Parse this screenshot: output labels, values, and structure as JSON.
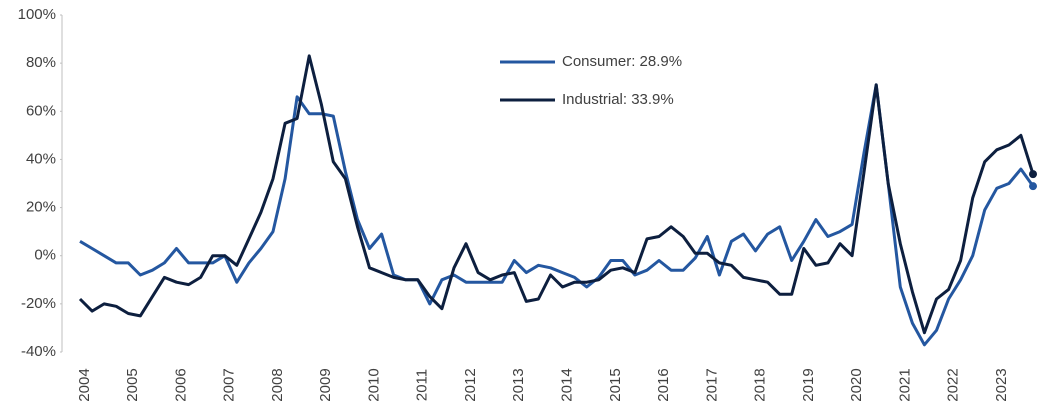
{
  "chart_data": {
    "type": "line",
    "categories": [
      "2004",
      null,
      null,
      null,
      "2005",
      null,
      null,
      null,
      "2006",
      null,
      null,
      null,
      "2007",
      null,
      null,
      null,
      "2008",
      null,
      null,
      null,
      "2009",
      null,
      null,
      null,
      "2010",
      null,
      null,
      null,
      "2011",
      null,
      null,
      null,
      "2012",
      null,
      null,
      null,
      "2013",
      null,
      null,
      null,
      "2014",
      null,
      null,
      null,
      "2015",
      null,
      null,
      null,
      "2016",
      null,
      null,
      null,
      "2017",
      null,
      null,
      null,
      "2018",
      null,
      null,
      null,
      "2019",
      null,
      null,
      null,
      "2020",
      null,
      null,
      null,
      "2021",
      null,
      null,
      null,
      "2022",
      null,
      null,
      null,
      "2023",
      null,
      null,
      null
    ],
    "series": [
      {
        "name": "Consumer: 28.9%",
        "color": "#2457a0",
        "values": [
          6,
          3,
          0,
          -3,
          -3,
          -8,
          -6,
          -3,
          3,
          -3,
          -3,
          -3,
          0,
          -11,
          -3,
          3,
          10,
          32,
          66,
          59,
          59,
          58,
          35,
          15,
          3,
          9,
          -8,
          -10,
          -10,
          -20,
          -10,
          -8,
          -11,
          -11,
          -11,
          -11,
          -2,
          -7,
          -4,
          -5,
          -7,
          -9,
          -13,
          -9,
          -2,
          -2,
          -8,
          -6,
          -2,
          -6,
          -6,
          -1,
          8,
          -8,
          6,
          9,
          2,
          9,
          12,
          -2,
          6,
          15,
          8,
          10,
          13,
          43,
          71,
          30,
          -13,
          -28,
          -37,
          -31,
          -18,
          -10,
          0,
          19,
          28,
          30,
          36,
          28.9
        ]
      },
      {
        "name": "Industrial: 33.9%",
        "color": "#0d1f3f",
        "values": [
          -18,
          -23,
          -20,
          -21,
          -24,
          -25,
          -17,
          -9,
          -11,
          -12,
          -9,
          0,
          0,
          -4,
          7,
          18,
          32,
          55,
          57,
          83,
          63,
          39,
          32,
          12,
          -5,
          -7,
          -9,
          -10,
          -10,
          -17,
          -22,
          -5,
          5,
          -7,
          -10,
          -8,
          -7,
          -19,
          -18,
          -8,
          -13,
          -11,
          -11,
          -10,
          -6,
          -5,
          -7,
          7,
          8,
          12,
          8,
          1,
          1,
          -3,
          -4,
          -9,
          -10,
          -11,
          -16,
          -16,
          3,
          -4,
          -3,
          5,
          0,
          35,
          71,
          30,
          5,
          -15,
          -32,
          -18,
          -14,
          -2,
          24,
          39,
          44,
          46,
          50,
          33.9
        ]
      }
    ],
    "ylim": [
      -40,
      100
    ],
    "yticks": [
      {
        "value": -40,
        "label": "-40%"
      },
      {
        "value": -20,
        "label": "-20%"
      },
      {
        "value": 0,
        "label": "0%"
      },
      {
        "value": 20,
        "label": "20%"
      },
      {
        "value": 40,
        "label": "40%"
      },
      {
        "value": 60,
        "label": "60%"
      },
      {
        "value": 80,
        "label": "80%"
      },
      {
        "value": 100,
        "label": "100%"
      }
    ],
    "grid": false
  }
}
